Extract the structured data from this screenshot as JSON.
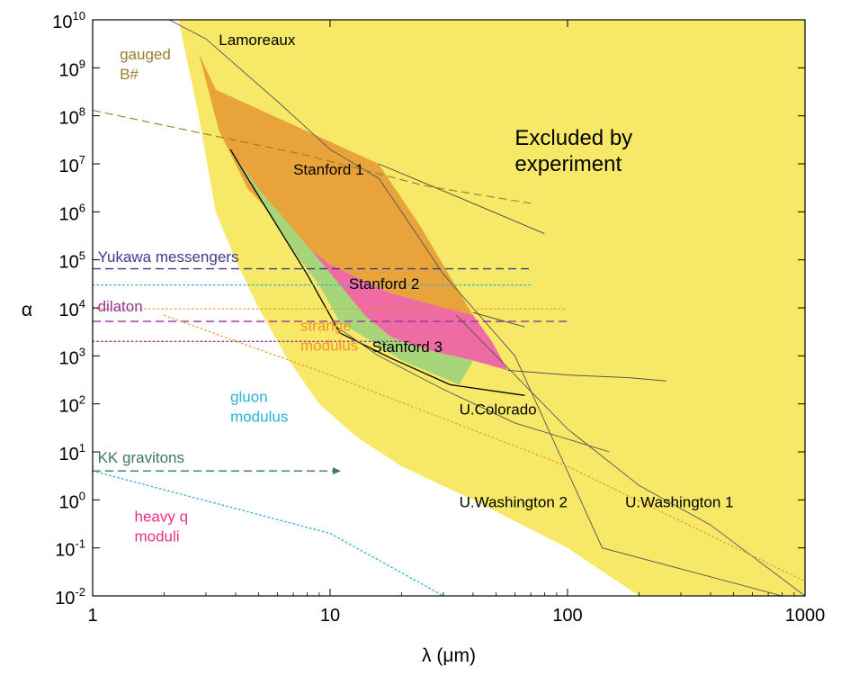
{
  "chart_data": {
    "type": "area",
    "x_scale": "log",
    "y_scale": "log",
    "xlim": [
      1,
      1000
    ],
    "ylim": [
      0.01,
      10000000000
    ],
    "x_ticks": [
      {
        "v": 1,
        "label": "1"
      },
      {
        "v": 10,
        "label": "10"
      },
      {
        "v": 100,
        "label": "100"
      },
      {
        "v": 1000,
        "label": "1000"
      }
    ],
    "y_ticks": [
      {
        "v": 10000000000,
        "base": "10",
        "exp": "10"
      },
      {
        "v": 1000000000,
        "base": "10",
        "exp": "9"
      },
      {
        "v": 100000000,
        "base": "10",
        "exp": "8"
      },
      {
        "v": 10000000,
        "base": "10",
        "exp": "7"
      },
      {
        "v": 1000000,
        "base": "10",
        "exp": "6"
      },
      {
        "v": 100000,
        "base": "10",
        "exp": "5"
      },
      {
        "v": 10000,
        "base": "10",
        "exp": "4"
      },
      {
        "v": 1000,
        "base": "10",
        "exp": "3"
      },
      {
        "v": 100,
        "base": "10",
        "exp": "2"
      },
      {
        "v": 10,
        "base": "10",
        "exp": "1"
      },
      {
        "v": 1,
        "base": "10",
        "exp": "0"
      },
      {
        "v": 0.1,
        "base": "10",
        "exp": "-1"
      },
      {
        "v": 0.01,
        "base": "10",
        "exp": "-2"
      }
    ],
    "xlabel": "λ (μm)",
    "ylabel": "α",
    "colors": {
      "excluded": "#f7e868",
      "stanford1": "#e8a43a",
      "stanford2": "#ee6ba3",
      "stanford3": "#a7d57a",
      "gauged": "#9b7d33",
      "yukawa": "#3c3c8c",
      "dilaton": "#993399",
      "strange": "#f0962a",
      "gluon": "#2bb3d6",
      "kk": "#3d7a5d",
      "heavy": "#e8308a"
    },
    "regions": [
      {
        "name": "Excluded by experiment",
        "color_key": "excluded",
        "points": [
          [
            2.3,
            10000000000
          ],
          [
            1000,
            10000000000
          ],
          [
            1000,
            0.01
          ],
          [
            200,
            0.01
          ],
          [
            100,
            0.1
          ],
          [
            40,
            1
          ],
          [
            20,
            5
          ],
          [
            13,
            20
          ],
          [
            9,
            100
          ],
          [
            6.5,
            1000
          ],
          [
            5,
            10000
          ],
          [
            4,
            100000
          ],
          [
            3.3,
            1000000
          ],
          [
            2.8,
            100000000
          ],
          [
            2.3,
            10000000000
          ]
        ]
      },
      {
        "name": "Stanford 1",
        "color_key": "stanford1",
        "points": [
          [
            2.8,
            2000000000
          ],
          [
            3.3,
            350000000
          ],
          [
            16,
            10000000
          ],
          [
            24,
            500000
          ],
          [
            40,
            7000
          ],
          [
            18,
            20000
          ],
          [
            10,
            80000
          ],
          [
            7,
            300000
          ],
          [
            4.5,
            3000000
          ],
          [
            3.4,
            50000000
          ],
          [
            2.8,
            2000000000
          ]
        ]
      },
      {
        "name": "Stanford 2",
        "color_key": "stanford2",
        "points": [
          [
            5,
            3000000
          ],
          [
            7,
            300000
          ],
          [
            10,
            80000
          ],
          [
            18,
            20000
          ],
          [
            40,
            7000
          ],
          [
            48,
            2000
          ],
          [
            56,
            500
          ],
          [
            40,
            800
          ],
          [
            26,
            1300
          ],
          [
            18,
            2500
          ],
          [
            14,
            7000
          ],
          [
            11,
            30000
          ],
          [
            8,
            200000
          ],
          [
            6,
            800000
          ],
          [
            5,
            3000000
          ]
        ]
      },
      {
        "name": "Stanford 3",
        "color_key": "stanford3",
        "points": [
          [
            3.8,
            20000000
          ],
          [
            5,
            3000000
          ],
          [
            8,
            200000
          ],
          [
            11,
            30000
          ],
          [
            14,
            7000
          ],
          [
            18,
            2500
          ],
          [
            26,
            1300
          ],
          [
            40,
            800
          ],
          [
            35,
            250
          ],
          [
            20,
            800
          ],
          [
            15,
            2000
          ],
          [
            11,
            5000
          ],
          [
            9,
            30000
          ],
          [
            7,
            150000
          ],
          [
            6,
            500000
          ],
          [
            4.5,
            5000000
          ],
          [
            3.8,
            20000000
          ]
        ]
      }
    ],
    "series": [
      {
        "name": "Lamoreaux",
        "style": "solid",
        "color": "#555555",
        "width": 0.9,
        "points": [
          [
            2.1,
            10000000000
          ],
          [
            3,
            4000000000
          ],
          [
            6,
            200000000
          ],
          [
            10,
            20000000
          ],
          [
            16,
            5000000
          ],
          [
            20,
            1000000
          ],
          [
            30,
            50000
          ],
          [
            60,
            1000
          ],
          [
            140,
            0.1
          ],
          [
            800,
            0.01
          ]
        ]
      },
      {
        "name": "",
        "style": "solid",
        "color": "#444444",
        "width": 0.9,
        "points": [
          [
            16,
            10000000
          ],
          [
            40,
            1500000
          ],
          [
            80,
            350000
          ]
        ]
      },
      {
        "name": "",
        "style": "solid",
        "color": "#444444",
        "width": 0.9,
        "points": [
          [
            40,
            8000
          ],
          [
            66,
            4000
          ]
        ]
      },
      {
        "name": "",
        "style": "solid",
        "color": "#444444",
        "width": 0.9,
        "points": [
          [
            56,
            500
          ],
          [
            100,
            400
          ],
          [
            180,
            350
          ],
          [
            260,
            300
          ]
        ]
      },
      {
        "name": "U.Colorado",
        "style": "solid",
        "color": "#000000",
        "width": 1.3,
        "points": [
          [
            3.8,
            20000000
          ],
          [
            4.5,
            5000000
          ],
          [
            6,
            500000
          ],
          [
            8,
            50000
          ],
          [
            11,
            3000
          ],
          [
            18,
            900
          ],
          [
            32,
            250
          ],
          [
            66,
            150
          ]
        ]
      },
      {
        "name": "U.Washington 2",
        "style": "solid",
        "color": "#555555",
        "width": 0.9,
        "points": [
          [
            10,
            5000
          ],
          [
            16,
            1000
          ],
          [
            30,
            200
          ],
          [
            60,
            40
          ],
          [
            150,
            10
          ]
        ]
      },
      {
        "name": "U.Washington 1",
        "style": "solid",
        "color": "#555555",
        "width": 0.9,
        "points": [
          [
            34,
            7000
          ],
          [
            60,
            400
          ],
          [
            100,
            30
          ],
          [
            200,
            2
          ],
          [
            400,
            0.3
          ],
          [
            1000,
            0.01
          ]
        ]
      },
      {
        "name": "gauged B#",
        "style": "dashed",
        "color_key": "gauged",
        "width": 1.1,
        "points": [
          [
            1,
            130000000
          ],
          [
            8,
            15000000
          ],
          [
            25,
            3500000
          ],
          [
            70,
            1500000
          ]
        ]
      },
      {
        "name": "Yukawa messengers",
        "style": "dashed",
        "color_key": "yukawa",
        "width": 1.4,
        "points": [
          [
            1,
            65000
          ],
          [
            70,
            65000
          ]
        ]
      },
      {
        "name": "",
        "style": "dotted",
        "color_key": "gluon",
        "width": 1.3,
        "points": [
          [
            1,
            30000
          ],
          [
            70,
            30000
          ]
        ]
      },
      {
        "name": "",
        "style": "dotted",
        "color_key": "strange",
        "width": 1.2,
        "points": [
          [
            1,
            9500
          ],
          [
            100,
            9500
          ]
        ]
      },
      {
        "name": "dilaton",
        "style": "dashed",
        "color_key": "dilaton",
        "width": 1.4,
        "points": [
          [
            1,
            5200
          ],
          [
            100,
            5200
          ]
        ]
      },
      {
        "name": "",
        "style": "dotted",
        "color_key": "dilaton",
        "width": 1.4,
        "points": [
          [
            1,
            2000
          ],
          [
            22,
            2000
          ]
        ]
      },
      {
        "name": "strange modulus",
        "style": "dotted",
        "color_key": "strange",
        "width": 1.2,
        "points": [
          [
            2,
            7000
          ],
          [
            10,
            400
          ],
          [
            100,
            5
          ],
          [
            1000,
            0.02
          ]
        ]
      },
      {
        "name": "gluon modulus",
        "style": "dotted",
        "color_key": "gluon",
        "width": 1.3,
        "points": [
          [
            1,
            4
          ],
          [
            10,
            0.2
          ],
          [
            30,
            0.01
          ]
        ]
      },
      {
        "name": "KK gravitons",
        "style": "dashed",
        "color_key": "kk",
        "width": 1.4,
        "arrow": true,
        "points": [
          [
            1,
            4
          ],
          [
            11,
            4
          ]
        ]
      }
    ],
    "annotations": [
      {
        "lines": [
          "Lamoreaux"
        ],
        "at": [
          3.4,
          3000000000
        ],
        "color": "#000000",
        "size": "normal"
      },
      {
        "lines": [
          "gauged",
          "B#"
        ],
        "at": [
          1.3,
          1500000000
        ],
        "color_key": "gauged",
        "size": "normal"
      },
      {
        "lines": [
          "Excluded by",
          "experiment"
        ],
        "at": [
          60,
          25000000
        ],
        "color": "#000000",
        "size": "big"
      },
      {
        "lines": [
          "Stanford 1"
        ],
        "at": [
          7,
          6000000
        ],
        "color": "#000000",
        "size": "normal"
      },
      {
        "lines": [
          "Yukawa messengers"
        ],
        "at": [
          1.05,
          90000
        ],
        "color_key": "yukawa",
        "size": "normal"
      },
      {
        "lines": [
          "Stanford 2"
        ],
        "at": [
          12,
          25000
        ],
        "color": "#000000",
        "size": "normal"
      },
      {
        "lines": [
          "dilaton"
        ],
        "at": [
          1.05,
          8500
        ],
        "color_key": "dilaton",
        "size": "normal"
      },
      {
        "lines": [
          "strange",
          "modulus"
        ],
        "at": [
          7.5,
          3300
        ],
        "color_key": "strange",
        "size": "normal"
      },
      {
        "lines": [
          "Stanford 3"
        ],
        "at": [
          15,
          1200
        ],
        "color": "#000000",
        "size": "normal"
      },
      {
        "lines": [
          "gluon",
          "modulus"
        ],
        "at": [
          3.8,
          110
        ],
        "color_key": "gluon",
        "size": "normal"
      },
      {
        "lines": [
          "U.Colorado"
        ],
        "at": [
          35,
          60
        ],
        "color": "#000000",
        "size": "normal"
      },
      {
        "lines": [
          "KK gravitons"
        ],
        "at": [
          1.05,
          6
        ],
        "color_key": "kk",
        "size": "normal"
      },
      {
        "lines": [
          "U.Washington 2"
        ],
        "at": [
          35,
          0.7
        ],
        "color": "#000000",
        "size": "normal"
      },
      {
        "lines": [
          "U.Washington 1"
        ],
        "at": [
          175,
          0.7
        ],
        "color": "#000000",
        "size": "normal"
      },
      {
        "lines": [
          "heavy q",
          "moduli"
        ],
        "at": [
          1.5,
          0.35
        ],
        "color_key": "heavy",
        "size": "normal"
      }
    ]
  }
}
